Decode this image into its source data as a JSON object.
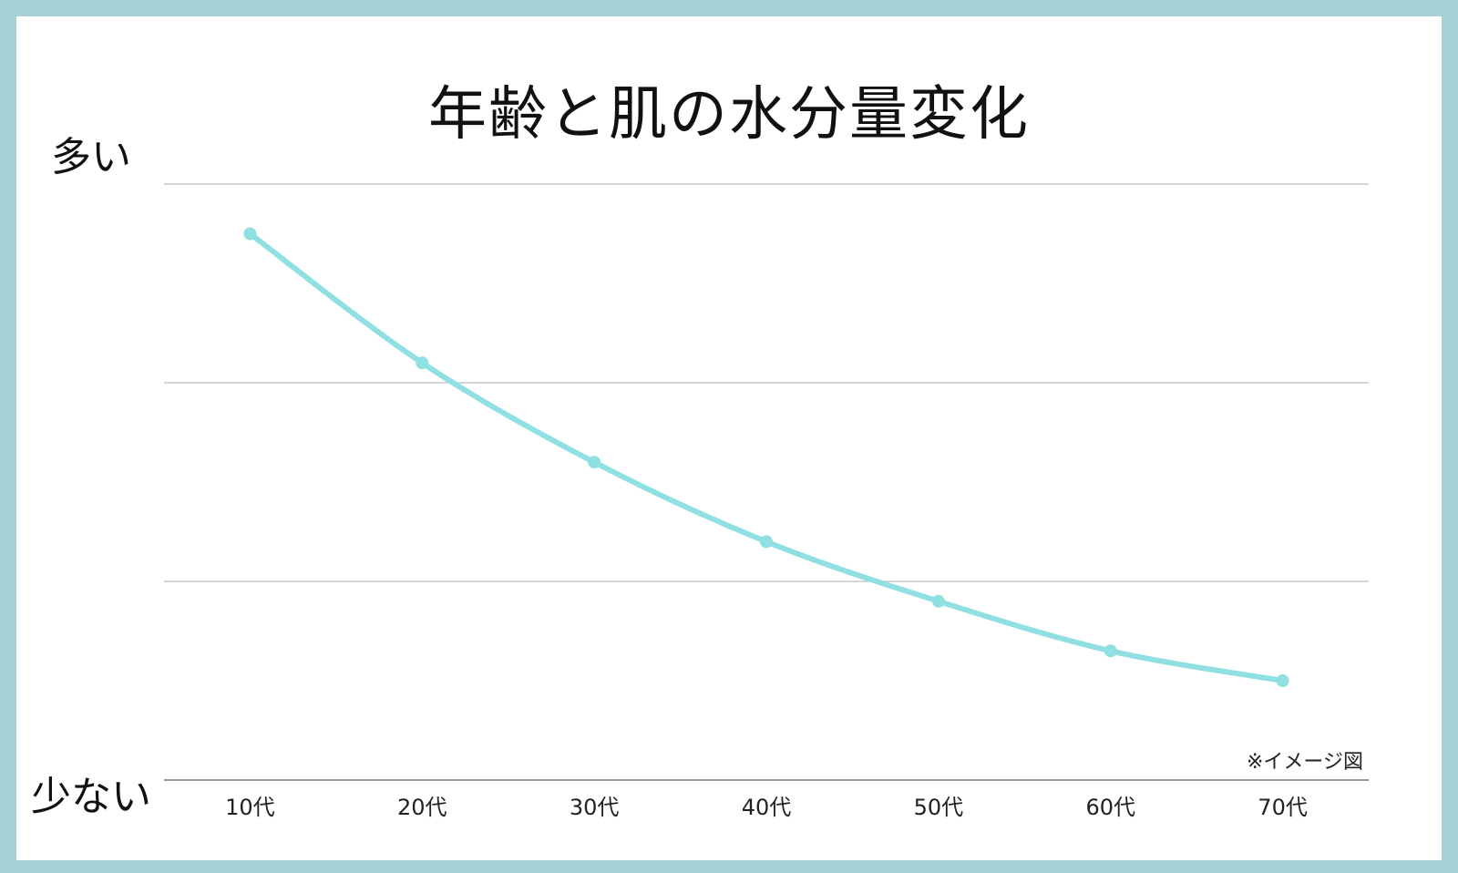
{
  "chart_data": {
    "type": "line",
    "title": "年齢と肌の水分量変化",
    "ylabel_top": "多い",
    "ylabel_bottom": "少ない",
    "note": "※イメージ図",
    "categories": [
      "10代",
      "20代",
      "30代",
      "40代",
      "50代",
      "60代",
      "70代"
    ],
    "series": [
      {
        "values": [
          2.75,
          2.1,
          1.6,
          1.2,
          0.9,
          0.65,
          0.5
        ]
      }
    ],
    "ylim": [
      0,
      3
    ],
    "grid": true,
    "line_color": "#8fdfe3"
  }
}
